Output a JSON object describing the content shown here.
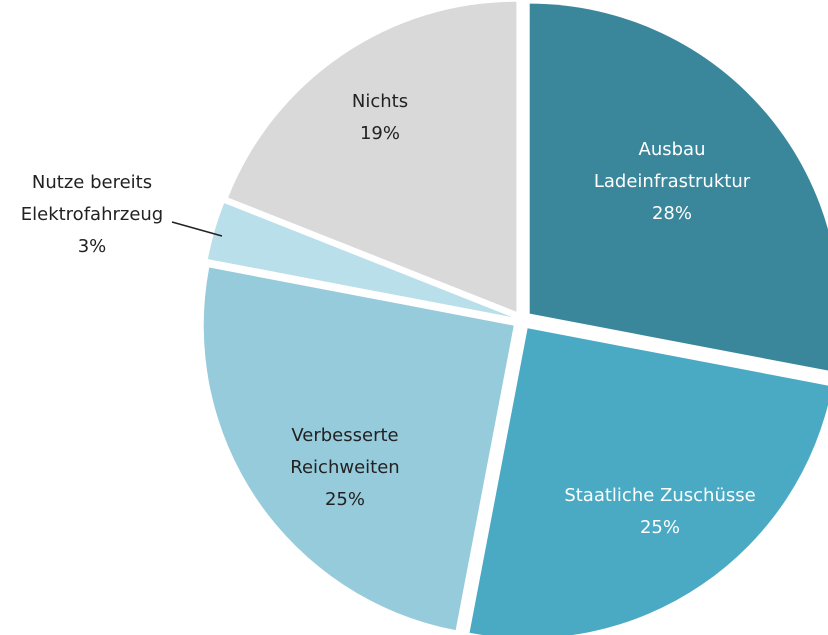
{
  "chart_data": {
    "type": "pie",
    "categories": [
      "Ausbau Ladeinfrastruktur",
      "Staatliche Zuschüsse",
      "Verbesserte Reichweiten",
      "Nutze bereits Elektrofahrzeug",
      "Nichts"
    ],
    "values": [
      28,
      25,
      25,
      3,
      19
    ],
    "value_labels": [
      "28%",
      "25%",
      "25%",
      "3%",
      "19%"
    ],
    "colors": [
      "#3a879c",
      "#4aaac4",
      "#96cbdc",
      "#b9dfea",
      "#d9d9d9"
    ]
  }
}
